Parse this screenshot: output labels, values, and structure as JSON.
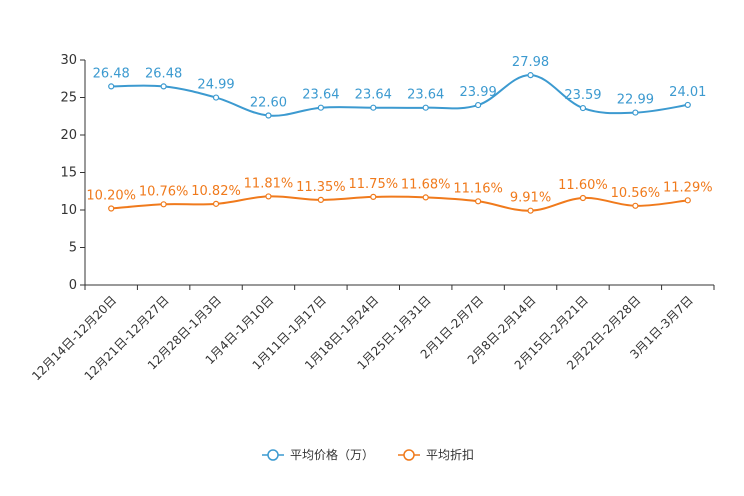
{
  "chart_data": {
    "type": "line",
    "title": "",
    "xlabel": "",
    "ylabel": "",
    "ylim": [
      0,
      30
    ],
    "yticks": [
      0,
      5,
      10,
      15,
      20,
      25,
      30
    ],
    "grid": false,
    "legend_position": "bottom-center",
    "categories": [
      "12月14日-12月20日",
      "12月21日-12月27日",
      "12月28日-1月3日",
      "1月4日-1月10日",
      "1月11日-1月17日",
      "1月18日-1月24日",
      "1月25日-1月31日",
      "2月1日-2月7日",
      "2月8日-2月14日",
      "2月15日-2月21日",
      "2月22日-2月28日",
      "3月1日-3月7日"
    ],
    "series": [
      {
        "name": "平均价格（万）",
        "color": "#3c9ad0",
        "values": [
          26.48,
          26.48,
          24.99,
          22.6,
          23.64,
          23.64,
          23.64,
          23.99,
          27.98,
          23.59,
          22.99,
          24.01
        ],
        "labels": [
          "26.48",
          "26.48",
          "24.99",
          "22.60",
          "23.64",
          "23.64",
          "23.64",
          "23.99",
          "27.98",
          "23.59",
          "22.99",
          "24.01"
        ]
      },
      {
        "name": "平均折扣",
        "color": "#f07a1c",
        "values": [
          10.2,
          10.76,
          10.82,
          11.81,
          11.35,
          11.75,
          11.68,
          11.16,
          9.91,
          11.6,
          10.56,
          11.29
        ],
        "labels": [
          "10.20%",
          "10.76%",
          "10.82%",
          "11.81%",
          "11.35%",
          "11.75%",
          "11.68%",
          "11.16%",
          "9.91%",
          "11.60%",
          "10.56%",
          "11.29%"
        ]
      }
    ]
  }
}
